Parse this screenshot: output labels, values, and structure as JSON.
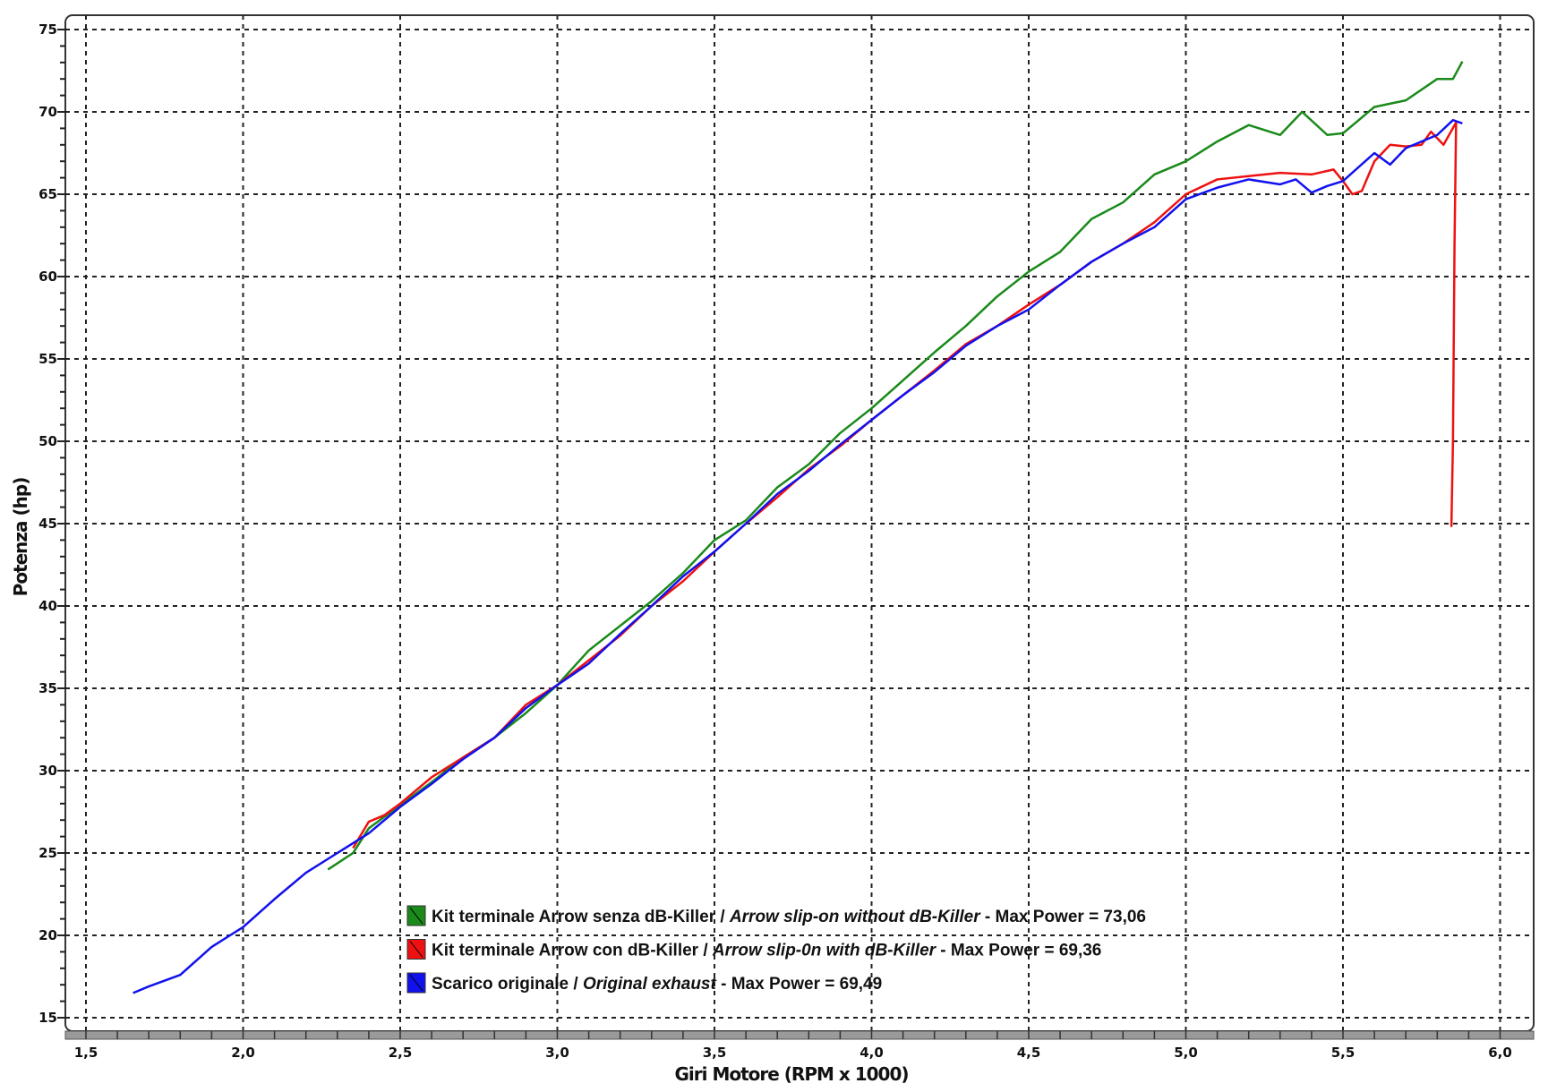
{
  "chart_data": {
    "type": "line",
    "title": "",
    "xlabel": "Giri Motore (RPM x 1000)",
    "ylabel": "Potenza (hp)",
    "xlim": [
      1.45,
      6.05
    ],
    "ylim": [
      14,
      75.5
    ],
    "xticks": [
      "1,5",
      "2,0",
      "2,5",
      "3,0",
      "3,5",
      "4,0",
      "4,5",
      "5,0",
      "5,5",
      "6,0"
    ],
    "xtick_values": [
      1.5,
      2.0,
      2.5,
      3.0,
      3.5,
      4.0,
      4.5,
      5.0,
      5.5,
      6.0
    ],
    "yticks": [
      "15",
      "20",
      "25",
      "30",
      "35",
      "40",
      "45",
      "50",
      "55",
      "60",
      "65",
      "70",
      "75"
    ],
    "ytick_values": [
      15,
      20,
      25,
      30,
      35,
      40,
      45,
      50,
      55,
      60,
      65,
      70,
      75
    ],
    "grid": true,
    "legend_position": "bottom-center",
    "series": [
      {
        "name": "green",
        "color": "#1a8a1a",
        "legend": {
          "a": "Kit terminale Arrow senza dB-Killer / ",
          "b": "Arrow slip-on without dB-Killer",
          "c": " - Max Power = 73,06"
        },
        "x": [
          2.27,
          2.35,
          2.4,
          2.5,
          2.6,
          2.7,
          2.8,
          2.9,
          3.0,
          3.1,
          3.2,
          3.3,
          3.4,
          3.5,
          3.6,
          3.7,
          3.8,
          3.9,
          4.0,
          4.1,
          4.2,
          4.3,
          4.4,
          4.5,
          4.6,
          4.7,
          4.8,
          4.9,
          5.0,
          5.1,
          5.2,
          5.3,
          5.37,
          5.45,
          5.5,
          5.6,
          5.7,
          5.8,
          5.85,
          5.88
        ],
        "y": [
          24.0,
          25.0,
          26.5,
          27.9,
          29.3,
          30.8,
          32.0,
          33.5,
          35.2,
          37.3,
          38.8,
          40.3,
          42.0,
          44.0,
          45.2,
          47.2,
          48.6,
          50.5,
          52.0,
          53.7,
          55.4,
          57.0,
          58.8,
          60.3,
          61.5,
          63.5,
          64.5,
          66.2,
          67.0,
          68.2,
          69.2,
          68.6,
          70.0,
          68.6,
          68.7,
          70.3,
          70.7,
          72.0,
          72.0,
          73.06
        ]
      },
      {
        "name": "red",
        "color": "#ee1111",
        "legend": {
          "a": "Kit terminale Arrow con dB-Killer / ",
          "b": "Arrow slip-0n with dB-Killer",
          "c": " - Max Power = 69,36"
        },
        "x": [
          2.35,
          2.4,
          2.45,
          2.5,
          2.6,
          2.7,
          2.8,
          2.9,
          3.0,
          3.1,
          3.2,
          3.3,
          3.4,
          3.5,
          3.6,
          3.7,
          3.8,
          3.9,
          4.0,
          4.1,
          4.2,
          4.3,
          4.4,
          4.5,
          4.6,
          4.7,
          4.8,
          4.9,
          5.0,
          5.1,
          5.2,
          5.3,
          5.4,
          5.47,
          5.5,
          5.53,
          5.56,
          5.6,
          5.65,
          5.7,
          5.75,
          5.78,
          5.82,
          5.86,
          5.855,
          5.85,
          5.845
        ],
        "y": [
          25.3,
          26.9,
          27.3,
          28.0,
          29.6,
          30.8,
          32.0,
          34.0,
          35.2,
          36.7,
          38.2,
          40.0,
          41.5,
          43.3,
          45.0,
          46.6,
          48.3,
          49.7,
          51.3,
          52.8,
          54.3,
          55.9,
          57.0,
          58.3,
          59.5,
          60.9,
          62.0,
          63.3,
          65.0,
          65.9,
          66.1,
          66.3,
          66.2,
          66.5,
          65.8,
          65.0,
          65.2,
          67.0,
          68.0,
          67.9,
          68.0,
          68.8,
          68.0,
          69.36,
          62.0,
          50.0,
          44.8
        ]
      },
      {
        "name": "blue",
        "color": "#1111ee",
        "legend": {
          "a": "Scarico originale / ",
          "b": "Original exhaust",
          "c": " - Max Power = 69,49"
        },
        "x": [
          1.65,
          1.7,
          1.8,
          1.9,
          2.0,
          2.1,
          2.2,
          2.3,
          2.4,
          2.5,
          2.6,
          2.7,
          2.8,
          2.9,
          3.0,
          3.1,
          3.2,
          3.3,
          3.4,
          3.5,
          3.6,
          3.7,
          3.8,
          3.9,
          4.0,
          4.1,
          4.2,
          4.3,
          4.4,
          4.5,
          4.6,
          4.7,
          4.8,
          4.9,
          5.0,
          5.1,
          5.2,
          5.3,
          5.35,
          5.4,
          5.45,
          5.5,
          5.6,
          5.65,
          5.7,
          5.75,
          5.8,
          5.85,
          5.88
        ],
        "y": [
          16.5,
          16.9,
          17.6,
          19.3,
          20.5,
          22.2,
          23.8,
          25.0,
          26.2,
          27.8,
          29.2,
          30.7,
          32.0,
          33.8,
          35.2,
          36.5,
          38.3,
          40.0,
          41.8,
          43.3,
          45.0,
          46.8,
          48.2,
          49.8,
          51.3,
          52.8,
          54.2,
          55.8,
          57.0,
          58.0,
          59.5,
          60.9,
          62.0,
          63.0,
          64.7,
          65.4,
          65.9,
          65.6,
          65.9,
          65.1,
          65.5,
          65.8,
          67.5,
          66.8,
          67.8,
          68.2,
          68.6,
          69.5,
          69.3
        ]
      }
    ]
  }
}
